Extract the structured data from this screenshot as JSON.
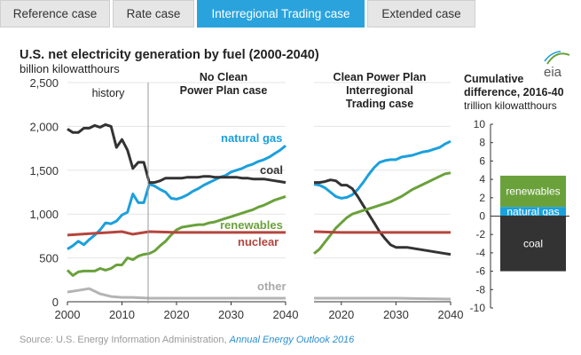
{
  "tabs": [
    {
      "label": "Reference case",
      "active": false
    },
    {
      "label": "Rate case",
      "active": false
    },
    {
      "label": "Interregional Trading case",
      "active": true
    },
    {
      "label": "Extended case",
      "active": false
    }
  ],
  "logo_text": "eia",
  "source": {
    "prefix": "Source:",
    "text": "U.S. Energy Information Administration,",
    "link": "Annual Energy Outlook 2016"
  },
  "colors": {
    "natural_gas": "#1ba0dc",
    "coal": "#333333",
    "renewables": "#6aa13b",
    "nuclear": "#b5453d",
    "other": "#b4b4b4",
    "history_line": "#999999"
  },
  "chart_data": [
    {
      "type": "line",
      "title": "U.S. net electricity generation by fuel (2000-2040)",
      "ylabel": "billion kilowatthours",
      "panel_label": "No Clean Power Plan case",
      "annotation": "history",
      "history_end": 2015,
      "xlim": [
        2000,
        2040
      ],
      "ylim": [
        0,
        2500
      ],
      "x_ticks": [
        2000,
        2010,
        2020,
        2030,
        2040
      ],
      "y_ticks": [
        0,
        500,
        "1,000",
        "1,500",
        "2,000",
        "2,500"
      ],
      "y_tick_values": [
        0,
        500,
        1000,
        1500,
        2000,
        2500
      ],
      "series": [
        {
          "name": "natural gas",
          "color_key": "natural_gas",
          "x": [
            2000,
            2001,
            2002,
            2003,
            2004,
            2005,
            2006,
            2007,
            2008,
            2009,
            2010,
            2011,
            2012,
            2013,
            2014,
            2015,
            2016,
            2017,
            2018,
            2019,
            2020,
            2021,
            2022,
            2023,
            2024,
            2025,
            2026,
            2027,
            2028,
            2029,
            2030,
            2031,
            2032,
            2033,
            2034,
            2035,
            2036,
            2037,
            2038,
            2039,
            2040
          ],
          "y": [
            600,
            640,
            690,
            650,
            710,
            760,
            820,
            900,
            890,
            920,
            990,
            1020,
            1230,
            1130,
            1130,
            1340,
            1320,
            1280,
            1250,
            1180,
            1170,
            1190,
            1220,
            1260,
            1290,
            1330,
            1360,
            1390,
            1420,
            1440,
            1480,
            1500,
            1520,
            1550,
            1570,
            1600,
            1620,
            1650,
            1690,
            1730,
            1780
          ]
        },
        {
          "name": "coal",
          "color_key": "coal",
          "x": [
            2000,
            2001,
            2002,
            2003,
            2004,
            2005,
            2006,
            2007,
            2008,
            2009,
            2010,
            2011,
            2012,
            2013,
            2014,
            2015,
            2016,
            2017,
            2018,
            2019,
            2020,
            2021,
            2022,
            2023,
            2024,
            2025,
            2026,
            2027,
            2028,
            2029,
            2030,
            2031,
            2032,
            2033,
            2034,
            2035,
            2036,
            2037,
            2038,
            2039,
            2040
          ],
          "y": [
            1970,
            1930,
            1930,
            1980,
            1980,
            2010,
            1990,
            2020,
            2000,
            1760,
            1850,
            1730,
            1520,
            1590,
            1590,
            1360,
            1360,
            1380,
            1410,
            1410,
            1410,
            1410,
            1420,
            1420,
            1420,
            1430,
            1430,
            1420,
            1420,
            1420,
            1420,
            1420,
            1410,
            1410,
            1400,
            1400,
            1400,
            1390,
            1380,
            1370,
            1360
          ]
        },
        {
          "name": "renewables",
          "color_key": "renewables",
          "x": [
            2000,
            2001,
            2002,
            2003,
            2004,
            2005,
            2006,
            2007,
            2008,
            2009,
            2010,
            2011,
            2012,
            2013,
            2014,
            2015,
            2016,
            2017,
            2018,
            2019,
            2020,
            2021,
            2022,
            2023,
            2024,
            2025,
            2026,
            2027,
            2028,
            2029,
            2030,
            2031,
            2032,
            2033,
            2034,
            2035,
            2036,
            2037,
            2038,
            2039,
            2040
          ],
          "y": [
            360,
            300,
            340,
            350,
            350,
            350,
            380,
            360,
            380,
            420,
            420,
            500,
            480,
            520,
            540,
            550,
            580,
            640,
            690,
            760,
            820,
            850,
            860,
            870,
            880,
            880,
            900,
            910,
            930,
            950,
            970,
            990,
            1010,
            1030,
            1050,
            1080,
            1100,
            1130,
            1160,
            1180,
            1200
          ]
        },
        {
          "name": "nuclear",
          "color_key": "nuclear",
          "x": [
            2000,
            2005,
            2010,
            2012,
            2015,
            2020,
            2025,
            2030,
            2035,
            2040
          ],
          "y": [
            760,
            780,
            800,
            770,
            800,
            790,
            790,
            790,
            790,
            790
          ]
        },
        {
          "name": "other",
          "color_key": "other",
          "x": [
            2000,
            2002,
            2004,
            2006,
            2008,
            2010,
            2012,
            2015,
            2020,
            2030,
            2040
          ],
          "y": [
            110,
            130,
            150,
            90,
            60,
            50,
            50,
            40,
            40,
            40,
            40
          ]
        }
      ]
    },
    {
      "type": "line",
      "panel_label": "Clean Power Plan Interregional Trading case",
      "xlim": [
        2015,
        2040
      ],
      "ylim": [
        0,
        2500
      ],
      "x_ticks": [
        2020,
        2030,
        2040
      ],
      "series": [
        {
          "name": "natural gas",
          "color_key": "natural_gas",
          "x": [
            2015,
            2016,
            2017,
            2018,
            2019,
            2020,
            2021,
            2022,
            2023,
            2024,
            2025,
            2026,
            2027,
            2028,
            2029,
            2030,
            2031,
            2032,
            2033,
            2034,
            2035,
            2036,
            2037,
            2038,
            2039,
            2040
          ],
          "y": [
            1340,
            1330,
            1300,
            1250,
            1200,
            1180,
            1190,
            1220,
            1280,
            1360,
            1450,
            1530,
            1590,
            1610,
            1620,
            1620,
            1650,
            1660,
            1670,
            1690,
            1710,
            1720,
            1740,
            1760,
            1800,
            1830
          ]
        },
        {
          "name": "coal",
          "color_key": "coal",
          "x": [
            2015,
            2016,
            2017,
            2018,
            2019,
            2020,
            2021,
            2022,
            2023,
            2024,
            2025,
            2026,
            2027,
            2028,
            2029,
            2030,
            2031,
            2032,
            2033,
            2034,
            2035,
            2036,
            2037,
            2038,
            2039,
            2040
          ],
          "y": [
            1360,
            1360,
            1370,
            1390,
            1380,
            1330,
            1330,
            1290,
            1200,
            1100,
            1000,
            900,
            800,
            720,
            650,
            620,
            620,
            620,
            610,
            600,
            590,
            580,
            570,
            560,
            550,
            540
          ]
        },
        {
          "name": "renewables",
          "color_key": "renewables",
          "x": [
            2015,
            2016,
            2017,
            2018,
            2019,
            2020,
            2021,
            2022,
            2023,
            2024,
            2025,
            2026,
            2027,
            2028,
            2029,
            2030,
            2031,
            2032,
            2033,
            2034,
            2035,
            2036,
            2037,
            2038,
            2039,
            2040
          ],
          "y": [
            550,
            600,
            680,
            760,
            840,
            900,
            960,
            1000,
            1020,
            1040,
            1060,
            1080,
            1100,
            1120,
            1140,
            1170,
            1200,
            1240,
            1280,
            1310,
            1340,
            1370,
            1400,
            1430,
            1460,
            1470
          ]
        },
        {
          "name": "nuclear",
          "color_key": "nuclear",
          "x": [
            2015,
            2020,
            2025,
            2030,
            2035,
            2040
          ],
          "y": [
            800,
            790,
            790,
            790,
            790,
            790
          ]
        },
        {
          "name": "other",
          "color_key": "other",
          "x": [
            2015,
            2020,
            2030,
            2040
          ],
          "y": [
            40,
            40,
            40,
            30
          ]
        }
      ]
    },
    {
      "type": "bar",
      "title": "Cumulative difference, 2016-40",
      "ylabel": "trillion kilowatthours",
      "ylim": [
        -10,
        10
      ],
      "y_ticks": [
        -10,
        -8,
        -6,
        -4,
        -2,
        0,
        2,
        4,
        6,
        8,
        10
      ],
      "stack": [
        {
          "name": "renewables",
          "color_key": "renewables",
          "from": 1.0,
          "to": 4.4
        },
        {
          "name": "natural gas",
          "color_key": "natural_gas",
          "from": 0,
          "to": 1.0
        },
        {
          "name": "coal",
          "color_key": "coal",
          "from": 0,
          "to": -6.0
        }
      ]
    }
  ]
}
